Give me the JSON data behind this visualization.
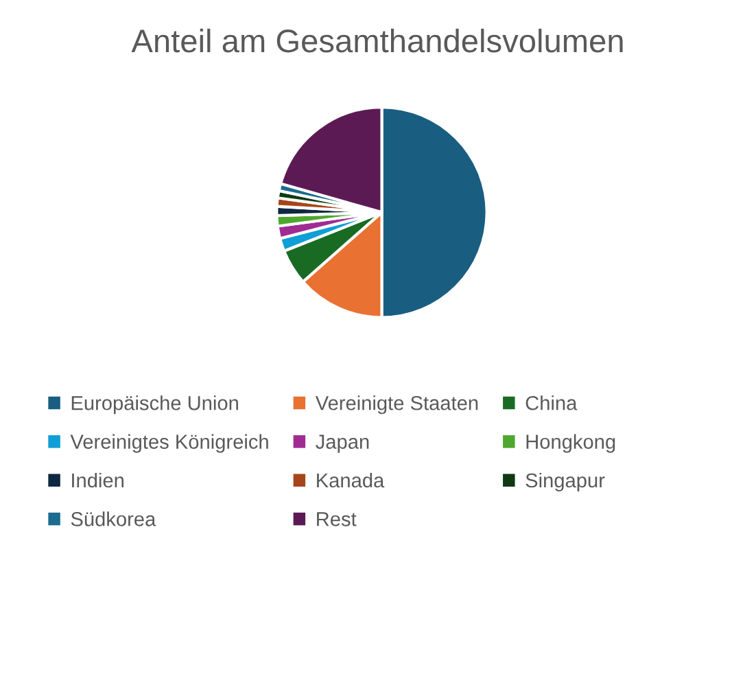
{
  "chart_data": {
    "type": "pie",
    "title": "Anteil am Gesamthandelsvolumen",
    "categories": [
      "Europäische Union",
      "Vereinigte Staaten",
      "China",
      "Vereinigtes Königreich",
      "Japan",
      "Hongkong",
      "Indien",
      "Kanada",
      "Singapur",
      "Südkorea",
      "Rest"
    ],
    "values": [
      50,
      13.5,
      5.5,
      2,
      1.9,
      1.6,
      1.4,
      1.3,
      1.1,
      1.1,
      20.6
    ],
    "colors": [
      "#195e80",
      "#e97132",
      "#196b24",
      "#0f9ed5",
      "#a02b93",
      "#4ea72e",
      "#0e2841",
      "#a5461a",
      "#0d3a12",
      "#1b6c8f",
      "#5c1a55"
    ],
    "legend": "bottom"
  }
}
